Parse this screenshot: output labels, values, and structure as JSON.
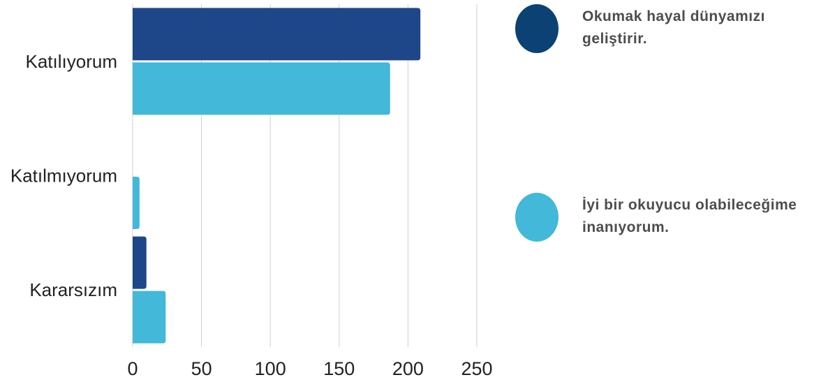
{
  "chart_data": {
    "type": "bar",
    "orientation": "horizontal",
    "categories": [
      "Katılıyorum",
      "Katılmıyorum",
      "Kararsızım"
    ],
    "series": [
      {
        "name": "Okumak hayal dünyamızı geliştirir.",
        "values": [
          209,
          0,
          10
        ],
        "color": "#1d4789"
      },
      {
        "name": "İyi bir okuyucu olabileceğime inanıyorum.",
        "values": [
          187,
          5,
          24
        ],
        "color": "#43b8d8"
      }
    ],
    "xlim": [
      0,
      250
    ],
    "xticks": [
      "0",
      "50",
      "100",
      "150",
      "200",
      "250"
    ],
    "grid": "vertical",
    "legend_position": "right",
    "legend_marker_colors": [
      "#0b4273",
      "#43b8d8"
    ]
  }
}
